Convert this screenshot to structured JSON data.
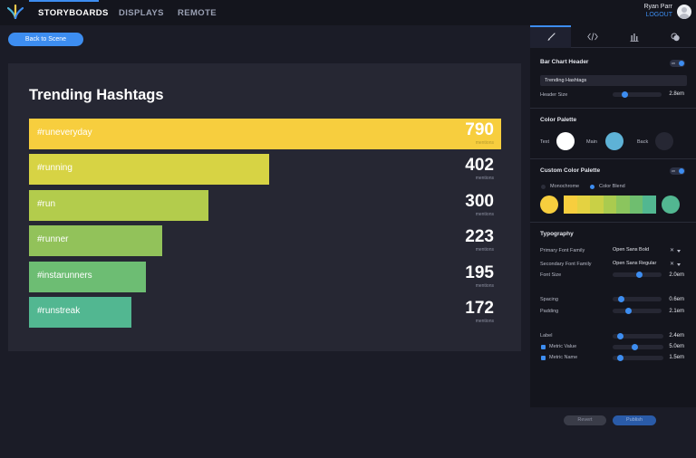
{
  "nav": {
    "items": [
      "STORYBOARDS",
      "DISPLAYS",
      "REMOTE"
    ],
    "active": "STORYBOARDS"
  },
  "user": {
    "name": "Ryan Parr",
    "logout_label": "LOGOUT"
  },
  "back_button": "Back to Scene",
  "chart_data": {
    "type": "bar",
    "orientation": "horizontal",
    "title": "Trending Hashtags",
    "categories": [
      "#runeveryday",
      "#running",
      "#run",
      "#runner",
      "#instarunners",
      "#runstreak"
    ],
    "values": [
      790,
      402,
      300,
      223,
      195,
      172
    ],
    "value_labels": [
      "790",
      "402",
      "300",
      "223",
      "195",
      "172"
    ],
    "metric_name": "mentions",
    "colors": [
      "#f7ce3e",
      "#d7d344",
      "#b3cc4c",
      "#92c25a",
      "#6dbd73",
      "#52b791"
    ],
    "xlim": [
      0,
      790
    ]
  },
  "panel": {
    "tabs": [
      "brush-icon",
      "code-icon",
      "bar-chart-icon",
      "circles-icon"
    ],
    "header_section": {
      "title": "Bar Chart Header",
      "toggle": "on",
      "header_text": "Trending Hashtags",
      "header_size_label": "Header Size",
      "header_size_value": "2.8em",
      "header_size_level": 0.22
    },
    "color_palette": {
      "title": "Color Palette",
      "text_label": "Text",
      "text_color": "#ffffff",
      "main_label": "Main",
      "main_color": "#5eb2d6",
      "back_label": "Back",
      "back_color": "#262733"
    },
    "custom_palette": {
      "title": "Custom Color Palette",
      "toggle": "on",
      "option_monochrome": "Monochrome",
      "option_blend": "Color Blend",
      "selected": "Color Blend",
      "start_color": "#f7ce3e",
      "end_color": "#52b791",
      "blend_colors": [
        "#f7ce3e",
        "#e4d241",
        "#c9d046",
        "#aacb4f",
        "#8bc55e",
        "#6fbe6f",
        "#52b791"
      ]
    },
    "typography": {
      "title": "Typography",
      "primary_label": "Primary Font Family",
      "primary_value": "Open Sans Bold",
      "secondary_label": "Secondary Font Family",
      "secondary_value": "Open Sans Regular",
      "font_size_label": "Font Size",
      "font_size_value": "2.0em",
      "font_size_level": 0.55,
      "spacing_label": "Spacing",
      "spacing_value": "0.6em",
      "spacing_level": 0.12,
      "padding_label": "Padding",
      "padding_value": "2.1em",
      "padding_level": 0.3,
      "label_label": "Label",
      "label_value": "2.4em",
      "label_level": 0.1,
      "metric_value_label": "Metric Value",
      "metric_value_value": "5.0em",
      "metric_value_level": 0.42,
      "metric_name_label": "Metric Name",
      "metric_name_value": "1.5em",
      "metric_name_level": 0.1
    }
  },
  "footer": {
    "revert": "Revert",
    "publish": "Publish"
  }
}
